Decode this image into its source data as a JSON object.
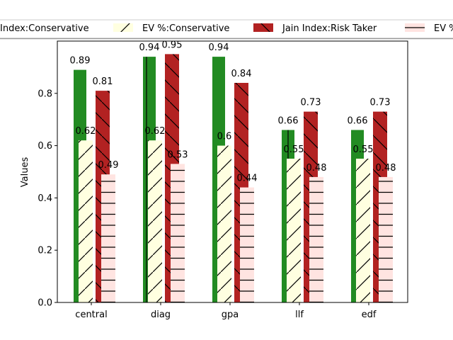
{
  "chart_data": {
    "type": "bar",
    "title": "",
    "xlabel": "",
    "ylabel": "Values",
    "ylim": [
      0,
      1.0
    ],
    "yticks": [
      "0.0",
      "0.2",
      "0.4",
      "0.6",
      "0.8"
    ],
    "ytick_values": [
      0.0,
      0.2,
      0.4,
      0.6,
      0.8
    ],
    "categories": [
      "central",
      "diag",
      "gpa",
      "llf",
      "edf"
    ],
    "grid": false,
    "legend_placement": "top",
    "series": [
      {
        "name": "Jain Index:Conservative",
        "legend_text": "Index:Conservative",
        "color": "#228b22",
        "hatch": "vertical",
        "values": [
          0.89,
          0.94,
          0.94,
          0.66,
          0.66
        ],
        "labels": [
          "0.89",
          "0.94",
          "0.94",
          "0.66",
          "0.66"
        ]
      },
      {
        "name": "EV %:Conservative",
        "legend_text": "EV %:Conservative",
        "color": "#ffffe0",
        "hatch": "diagonal",
        "values": [
          0.62,
          0.62,
          0.6,
          0.55,
          0.55
        ],
        "labels": [
          "0.62",
          "0.62",
          "0.6",
          "0.55",
          "0.55"
        ]
      },
      {
        "name": "Jain Index:Risk Taker",
        "legend_text": "Jain Index:Risk Taker",
        "color": "#b22222",
        "hatch": "backslash",
        "values": [
          0.81,
          0.95,
          0.84,
          0.73,
          0.73
        ],
        "labels": [
          "0.81",
          "0.95",
          "0.84",
          "0.73",
          "0.73"
        ]
      },
      {
        "name": "EV %:Risk Taker",
        "legend_text": "EV %",
        "color": "#ffe4e1",
        "hatch": "horizontal",
        "values": [
          0.49,
          0.53,
          0.44,
          0.48,
          0.48
        ],
        "labels": [
          "0.49",
          "0.53",
          "0.44",
          "0.48",
          "0.48"
        ]
      }
    ]
  }
}
